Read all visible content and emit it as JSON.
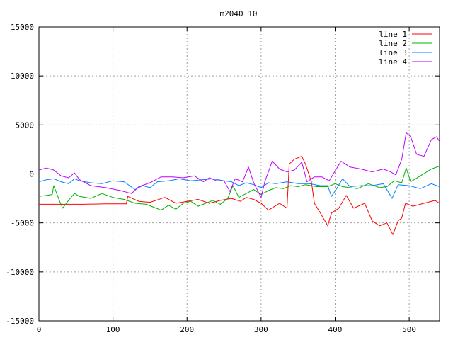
{
  "chart_data": {
    "type": "line",
    "title": "m2040_10",
    "xlabel": "",
    "ylabel": "",
    "xlim": [
      0,
      541
    ],
    "ylim": [
      -15000,
      15000
    ],
    "xticks": [
      0,
      100,
      200,
      300,
      400,
      500
    ],
    "yticks": [
      -15000,
      -10000,
      -5000,
      0,
      5000,
      10000,
      15000
    ],
    "grid": true,
    "legend_position": "top-right",
    "series": [
      {
        "name": "line 1",
        "color": "#ff0000",
        "points": [
          [
            0,
            -3100
          ],
          [
            30,
            -3100
          ],
          [
            60,
            -3100
          ],
          [
            90,
            -3050
          ],
          [
            118,
            -3050
          ],
          [
            120,
            -2300
          ],
          [
            135,
            -2800
          ],
          [
            150,
            -2900
          ],
          [
            170,
            -2400
          ],
          [
            185,
            -3000
          ],
          [
            200,
            -2800
          ],
          [
            215,
            -2600
          ],
          [
            230,
            -3000
          ],
          [
            245,
            -2700
          ],
          [
            260,
            -2500
          ],
          [
            272,
            -2800
          ],
          [
            280,
            -2400
          ],
          [
            290,
            -2600
          ],
          [
            300,
            -3000
          ],
          [
            310,
            -3700
          ],
          [
            325,
            -3000
          ],
          [
            335,
            -3500
          ],
          [
            338,
            1000
          ],
          [
            345,
            1500
          ],
          [
            355,
            1800
          ],
          [
            360,
            1000
          ],
          [
            368,
            -800
          ],
          [
            372,
            -3000
          ],
          [
            380,
            -4000
          ],
          [
            390,
            -5300
          ],
          [
            395,
            -4000
          ],
          [
            405,
            -3500
          ],
          [
            415,
            -2200
          ],
          [
            425,
            -3500
          ],
          [
            440,
            -3000
          ],
          [
            450,
            -4800
          ],
          [
            460,
            -5300
          ],
          [
            470,
            -5000
          ],
          [
            478,
            -6200
          ],
          [
            485,
            -4800
          ],
          [
            490,
            -4500
          ],
          [
            495,
            -3000
          ],
          [
            505,
            -3300
          ],
          [
            520,
            -3000
          ],
          [
            535,
            -2700
          ],
          [
            541,
            -3000
          ]
        ]
      },
      {
        "name": "line 2",
        "color": "#00b000",
        "points": [
          [
            0,
            -2300
          ],
          [
            10,
            -2200
          ],
          [
            18,
            -2100
          ],
          [
            20,
            -1200
          ],
          [
            28,
            -2800
          ],
          [
            32,
            -3500
          ],
          [
            40,
            -2700
          ],
          [
            48,
            -2000
          ],
          [
            55,
            -2300
          ],
          [
            70,
            -2500
          ],
          [
            85,
            -2000
          ],
          [
            100,
            -2400
          ],
          [
            115,
            -2600
          ],
          [
            130,
            -3000
          ],
          [
            145,
            -3100
          ],
          [
            155,
            -3400
          ],
          [
            165,
            -3700
          ],
          [
            175,
            -3200
          ],
          [
            185,
            -3600
          ],
          [
            195,
            -3000
          ],
          [
            205,
            -2800
          ],
          [
            215,
            -3300
          ],
          [
            225,
            -3000
          ],
          [
            235,
            -2700
          ],
          [
            245,
            -3100
          ],
          [
            255,
            -2500
          ],
          [
            262,
            -1200
          ],
          [
            270,
            -2400
          ],
          [
            280,
            -2000
          ],
          [
            290,
            -1600
          ],
          [
            300,
            -2100
          ],
          [
            310,
            -1700
          ],
          [
            320,
            -1400
          ],
          [
            330,
            -1500
          ],
          [
            340,
            -1200
          ],
          [
            350,
            -1300
          ],
          [
            360,
            -1100
          ],
          [
            375,
            -1300
          ],
          [
            390,
            -1300
          ],
          [
            400,
            -1000
          ],
          [
            410,
            -1300
          ],
          [
            430,
            -1500
          ],
          [
            445,
            -1000
          ],
          [
            460,
            -1400
          ],
          [
            470,
            -1300
          ],
          [
            480,
            -700
          ],
          [
            490,
            -900
          ],
          [
            496,
            600
          ],
          [
            502,
            -800
          ],
          [
            515,
            -200
          ],
          [
            530,
            500
          ],
          [
            541,
            800
          ]
        ]
      },
      {
        "name": "line 3",
        "color": "#0080ff",
        "points": [
          [
            0,
            -800
          ],
          [
            10,
            -600
          ],
          [
            20,
            -500
          ],
          [
            30,
            -800
          ],
          [
            40,
            -1000
          ],
          [
            48,
            -500
          ],
          [
            55,
            -700
          ],
          [
            70,
            -900
          ],
          [
            85,
            -1000
          ],
          [
            100,
            -700
          ],
          [
            115,
            -800
          ],
          [
            130,
            -1600
          ],
          [
            140,
            -1200
          ],
          [
            150,
            -1400
          ],
          [
            160,
            -800
          ],
          [
            175,
            -700
          ],
          [
            190,
            -500
          ],
          [
            205,
            -700
          ],
          [
            220,
            -600
          ],
          [
            235,
            -500
          ],
          [
            250,
            -700
          ],
          [
            260,
            -800
          ],
          [
            270,
            -1200
          ],
          [
            280,
            -900
          ],
          [
            290,
            -1100
          ],
          [
            300,
            -1400
          ],
          [
            310,
            -900
          ],
          [
            320,
            -1000
          ],
          [
            335,
            -800
          ],
          [
            350,
            -1000
          ],
          [
            365,
            -1000
          ],
          [
            380,
            -1200
          ],
          [
            390,
            -1200
          ],
          [
            395,
            -2300
          ],
          [
            402,
            -1500
          ],
          [
            410,
            -500
          ],
          [
            420,
            -1300
          ],
          [
            435,
            -1200
          ],
          [
            450,
            -1200
          ],
          [
            465,
            -1000
          ],
          [
            477,
            -2500
          ],
          [
            485,
            -1100
          ],
          [
            500,
            -1200
          ],
          [
            515,
            -1500
          ],
          [
            530,
            -1000
          ],
          [
            541,
            -1300
          ]
        ]
      },
      {
        "name": "line 4",
        "color": "#c000ff",
        "points": [
          [
            0,
            400
          ],
          [
            10,
            600
          ],
          [
            20,
            400
          ],
          [
            30,
            -200
          ],
          [
            40,
            -400
          ],
          [
            48,
            100
          ],
          [
            55,
            -600
          ],
          [
            70,
            -1200
          ],
          [
            90,
            -1400
          ],
          [
            110,
            -1700
          ],
          [
            125,
            -2000
          ],
          [
            135,
            -1300
          ],
          [
            150,
            -900
          ],
          [
            165,
            -300
          ],
          [
            180,
            -300
          ],
          [
            195,
            -400
          ],
          [
            210,
            -200
          ],
          [
            222,
            -800
          ],
          [
            230,
            -400
          ],
          [
            240,
            -700
          ],
          [
            250,
            -700
          ],
          [
            258,
            -1800
          ],
          [
            265,
            -500
          ],
          [
            275,
            -800
          ],
          [
            283,
            700
          ],
          [
            290,
            -900
          ],
          [
            300,
            -2400
          ],
          [
            305,
            -800
          ],
          [
            315,
            1300
          ],
          [
            325,
            500
          ],
          [
            335,
            200
          ],
          [
            345,
            400
          ],
          [
            355,
            1200
          ],
          [
            362,
            -800
          ],
          [
            372,
            -300
          ],
          [
            382,
            -300
          ],
          [
            392,
            -700
          ],
          [
            400,
            300
          ],
          [
            408,
            1300
          ],
          [
            420,
            700
          ],
          [
            435,
            500
          ],
          [
            450,
            200
          ],
          [
            465,
            500
          ],
          [
            475,
            200
          ],
          [
            482,
            -100
          ],
          [
            490,
            1500
          ],
          [
            496,
            4200
          ],
          [
            502,
            3800
          ],
          [
            510,
            2000
          ],
          [
            520,
            1800
          ],
          [
            530,
            3500
          ],
          [
            537,
            3800
          ],
          [
            541,
            3300
          ]
        ]
      }
    ]
  }
}
